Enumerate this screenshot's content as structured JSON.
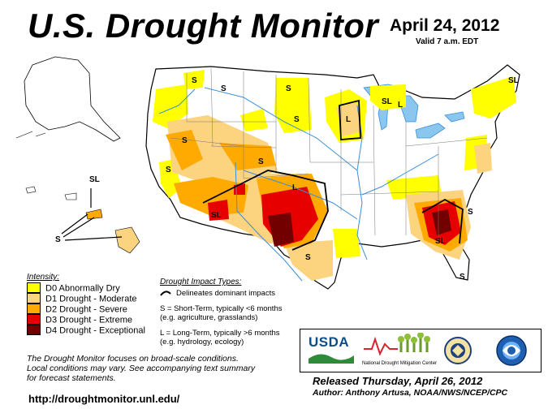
{
  "header": {
    "title": "U.S. Drought Monitor",
    "date": "April 24, 2012",
    "valid": "Valid 7 a.m. EDT"
  },
  "legend": {
    "title": "Intensity:",
    "items": [
      {
        "label": "D0 Abnormally Dry",
        "color": "#ffff00"
      },
      {
        "label": "D1 Drought - Moderate",
        "color": "#fcd37f"
      },
      {
        "label": "D2 Drought - Severe",
        "color": "#ffaa00"
      },
      {
        "label": "D3 Drought - Extreme",
        "color": "#e60000"
      },
      {
        "label": "D4 Drought - Exceptional",
        "color": "#730000"
      }
    ]
  },
  "impacts": {
    "title": "Drought Impact Types:",
    "line1": "Delineates dominant impacts",
    "short_1": "S = Short-Term, typically <6 months",
    "short_2": "(e.g. agriculture, grasslands)",
    "long_1": "L = Long-Term, typically >6 months",
    "long_2": "(e.g. hydrology, ecology)"
  },
  "note": {
    "line1": "The Drought Monitor focuses on broad-scale conditions.",
    "line2": "Local conditions may vary. See accompanying text summary",
    "line3": "for forecast statements."
  },
  "url": "http://droughtmonitor.unl.edu/",
  "logos": {
    "usda": "USDA",
    "ndmc": "National Drought Mitigation Center"
  },
  "footer": {
    "released": "Released Thursday, April 26, 2012",
    "author": "Author: Anthony Artusa, NOAA/NWS/NCEP/CPC"
  },
  "map_labels": {
    "s": "S",
    "l": "L",
    "sl": "SL"
  },
  "colors": {
    "d0": "#ffff00",
    "d1": "#fcd37f",
    "d2": "#ffaa00",
    "d3": "#e60000",
    "d4": "#730000",
    "water": "#8ac6ee",
    "rivers": "#3b8fd9"
  }
}
